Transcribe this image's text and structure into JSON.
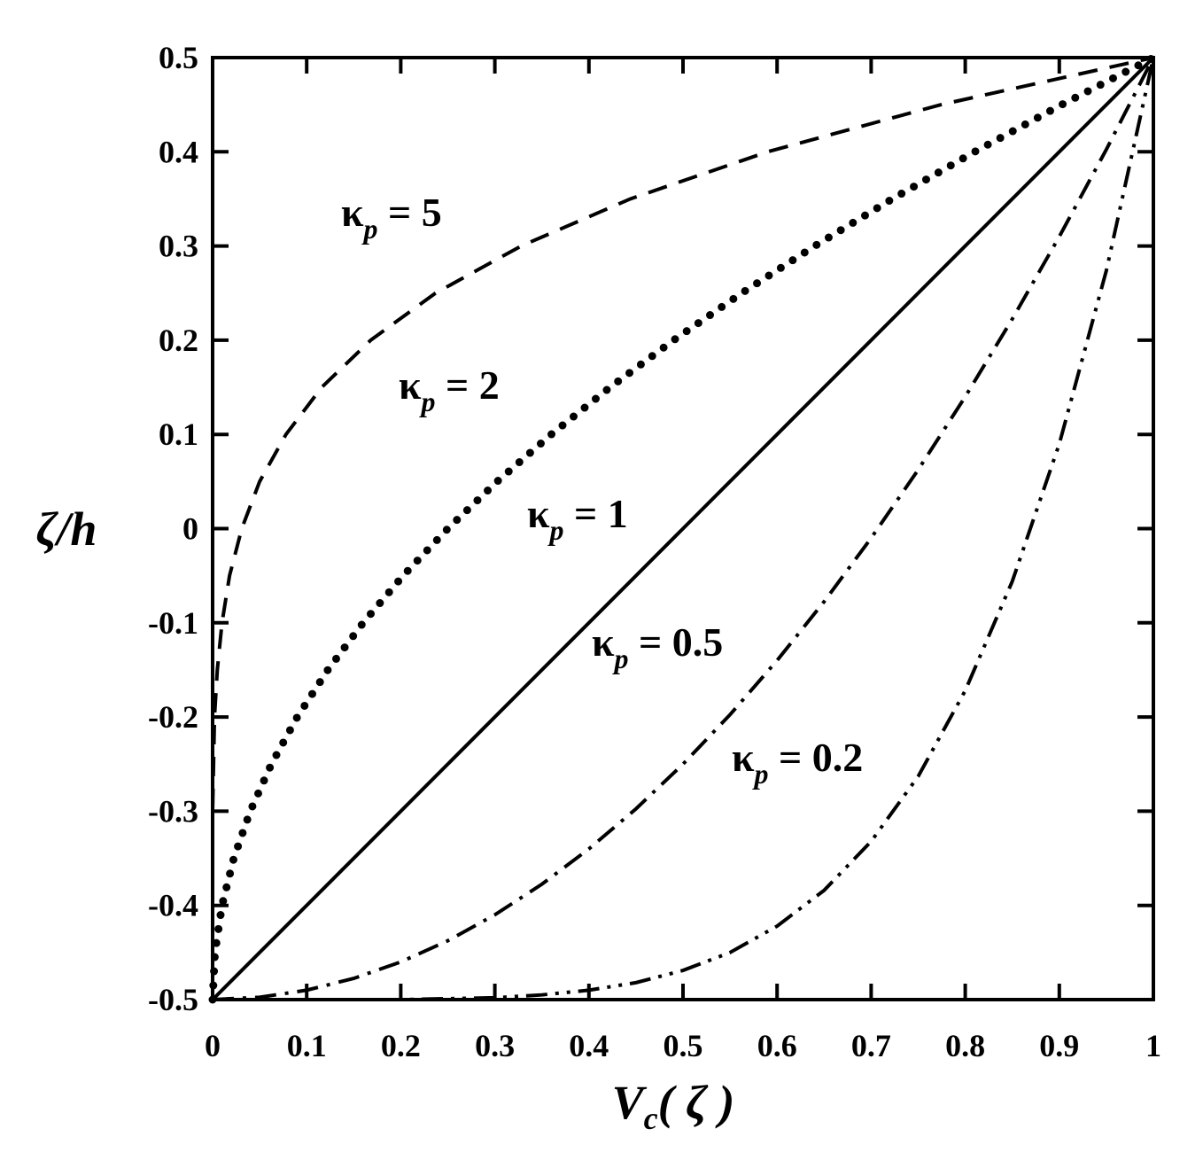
{
  "chart_data": {
    "type": "line",
    "xlabel": [
      "V",
      "c",
      "( ζ )"
    ],
    "ylabel": "ζ/h",
    "xlim": [
      0,
      1
    ],
    "ylim": [
      -0.5,
      0.5
    ],
    "xticks": [
      0,
      0.1,
      0.2,
      0.3,
      0.4,
      0.5,
      0.6,
      0.7,
      0.8,
      0.9,
      1
    ],
    "yticks": [
      -0.5,
      -0.4,
      -0.3,
      -0.2,
      -0.1,
      0,
      0.1,
      0.2,
      0.3,
      0.4,
      0.5
    ],
    "series": [
      {
        "label": [
          "κ",
          "p",
          " = 5"
        ],
        "color": "#000",
        "style": "dashed",
        "x": [
          0,
          0,
          0,
          0,
          0,
          0.001,
          0.002,
          0.005,
          0.01,
          0.018,
          0.031,
          0.05,
          0.078,
          0.116,
          0.168,
          0.237,
          0.328,
          0.444,
          0.59,
          0.774,
          1
        ],
        "values": [
          -0.5,
          -0.45,
          -0.4,
          -0.35,
          -0.3,
          -0.25,
          -0.2,
          -0.15,
          -0.1,
          -0.05,
          0,
          0.05,
          0.1,
          0.15,
          0.2,
          0.25,
          0.3,
          0.35,
          0.4,
          0.45,
          0.5
        ]
      },
      {
        "label": [
          "κ",
          "p",
          " = 2"
        ],
        "color": "#000",
        "style": "dotted",
        "x": [
          0,
          0.0025,
          0.01,
          0.0225,
          0.04,
          0.0625,
          0.09,
          0.1225,
          0.16,
          0.2025,
          0.25,
          0.3025,
          0.36,
          0.4225,
          0.49,
          0.5625,
          0.64,
          0.7225,
          0.81,
          0.9025,
          1
        ],
        "values": [
          -0.5,
          -0.45,
          -0.4,
          -0.35,
          -0.3,
          -0.25,
          -0.2,
          -0.15,
          -0.1,
          -0.05,
          0,
          0.05,
          0.1,
          0.15,
          0.2,
          0.25,
          0.3,
          0.35,
          0.4,
          0.45,
          0.5
        ]
      },
      {
        "label": [
          "κ",
          "p",
          " = 1"
        ],
        "color": "#000",
        "style": "solid",
        "x": [
          0,
          0.05,
          0.1,
          0.15,
          0.2,
          0.25,
          0.3,
          0.35,
          0.4,
          0.45,
          0.5,
          0.55,
          0.6,
          0.65,
          0.7,
          0.75,
          0.8,
          0.85,
          0.9,
          0.95,
          1
        ],
        "values": [
          -0.5,
          -0.45,
          -0.4,
          -0.35,
          -0.3,
          -0.25,
          -0.2,
          -0.15,
          -0.1,
          -0.05,
          0,
          0.05,
          0.1,
          0.15,
          0.2,
          0.25,
          0.3,
          0.35,
          0.4,
          0.45,
          0.5
        ]
      },
      {
        "label": [
          "κ",
          "p",
          " = 0.5"
        ],
        "color": "#000",
        "style": "dashdot",
        "x": [
          0,
          0.05,
          0.1,
          0.15,
          0.2,
          0.25,
          0.3,
          0.35,
          0.4,
          0.45,
          0.5,
          0.55,
          0.6,
          0.65,
          0.7,
          0.75,
          0.8,
          0.85,
          0.9,
          0.95,
          1
        ],
        "values": [
          -0.5,
          -0.4975,
          -0.49,
          -0.4775,
          -0.46,
          -0.4375,
          -0.41,
          -0.3775,
          -0.34,
          -0.2975,
          -0.25,
          -0.1975,
          -0.14,
          -0.0775,
          -0.01,
          0.0625,
          0.14,
          0.2225,
          0.31,
          0.4025,
          0.5
        ]
      },
      {
        "label": [
          "κ",
          "p",
          " = 0.2"
        ],
        "color": "#000",
        "style": "dashdotdot",
        "x": [
          0,
          0.05,
          0.1,
          0.15,
          0.2,
          0.25,
          0.3,
          0.35,
          0.4,
          0.45,
          0.5,
          0.55,
          0.6,
          0.65,
          0.7,
          0.75,
          0.8,
          0.85,
          0.9,
          0.95,
          1
        ],
        "values": [
          -0.5,
          -0.5,
          -0.5,
          -0.5,
          -0.5,
          -0.499,
          -0.498,
          -0.495,
          -0.49,
          -0.482,
          -0.469,
          -0.45,
          -0.422,
          -0.384,
          -0.332,
          -0.263,
          -0.172,
          -0.056,
          0.09,
          0.274,
          0.5
        ]
      }
    ]
  }
}
